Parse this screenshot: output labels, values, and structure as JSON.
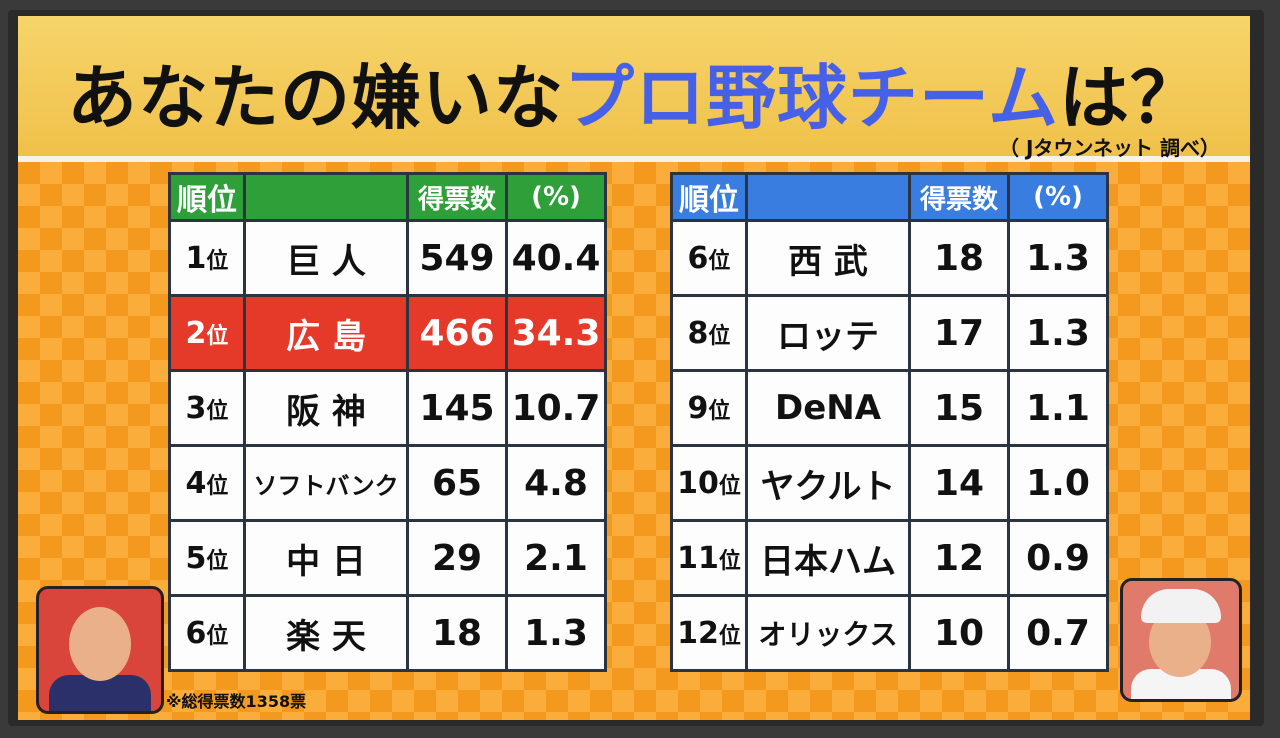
{
  "title": {
    "part1": "あなたの嫌いな",
    "part2": "プロ野球チーム",
    "part3": "は？"
  },
  "credit": "（ Jタウンネット 調べ）",
  "headers": {
    "rank": "順位",
    "team": "",
    "votes": "得票数",
    "pct": "(%)"
  },
  "left_rows": [
    {
      "rank_num": "1",
      "rank_suffix": "位",
      "team": "巨 人",
      "votes": "549",
      "pct": "40.4"
    },
    {
      "rank_num": "2",
      "rank_suffix": "位",
      "team": "広 島",
      "votes": "466",
      "pct": "34.3"
    },
    {
      "rank_num": "3",
      "rank_suffix": "位",
      "team": "阪 神",
      "votes": "145",
      "pct": "10.7"
    },
    {
      "rank_num": "4",
      "rank_suffix": "位",
      "team": "ソフトバンク",
      "votes": "65",
      "pct": "4.8"
    },
    {
      "rank_num": "5",
      "rank_suffix": "位",
      "team": "中 日",
      "votes": "29",
      "pct": "2.1"
    },
    {
      "rank_num": "6",
      "rank_suffix": "位",
      "team": "楽 天",
      "votes": "18",
      "pct": "1.3"
    }
  ],
  "right_rows": [
    {
      "rank_num": "6",
      "rank_suffix": "位",
      "team": "西 武",
      "votes": "18",
      "pct": "1.3"
    },
    {
      "rank_num": "8",
      "rank_suffix": "位",
      "team": "ロッテ",
      "votes": "17",
      "pct": "1.3"
    },
    {
      "rank_num": "9",
      "rank_suffix": "位",
      "team": "DeNA",
      "votes": "15",
      "pct": "1.1"
    },
    {
      "rank_num": "10",
      "rank_suffix": "位",
      "team": "ヤクルト",
      "votes": "14",
      "pct": "1.0"
    },
    {
      "rank_num": "11",
      "rank_suffix": "位",
      "team": "日本ハム",
      "votes": "12",
      "pct": "0.9"
    },
    {
      "rank_num": "12",
      "rank_suffix": "位",
      "team": "オリックス",
      "votes": "10",
      "pct": "0.7"
    }
  ],
  "note": "※総得票数1358票",
  "colors": {
    "accent_blue": "#4660e8",
    "header_green": "#2f9f3a",
    "header_blue": "#3a7de0",
    "highlight_red": "#e53a2a",
    "board_orange": "#f39a1e"
  }
}
